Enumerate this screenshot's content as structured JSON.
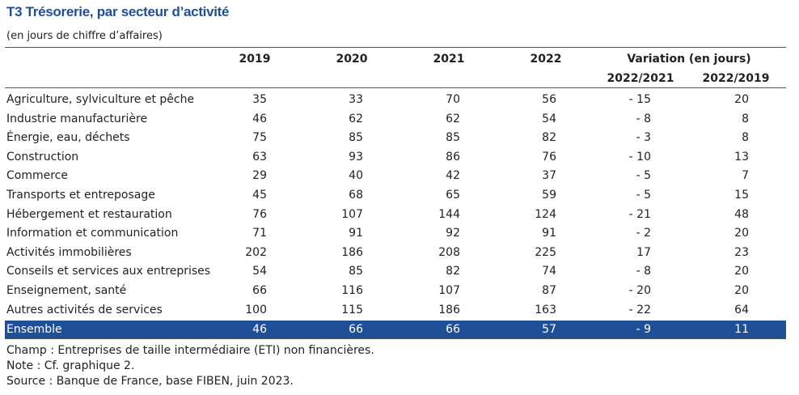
{
  "header": {
    "title": "T3  Trésorerie, par secteur d’activité",
    "subtitle": "(en jours de chiffre d’affaires)"
  },
  "table": {
    "columns": [
      "2019",
      "2020",
      "2021",
      "2022"
    ],
    "variation_header": "Variation (en jours)",
    "variation_columns": [
      "2022/2021",
      "2022/2019"
    ],
    "rows": [
      [
        "Agriculture, sylviculture et pêche",
        "35",
        "33",
        "70",
        "56",
        "- 15",
        "20"
      ],
      [
        "Industrie manufacturière",
        "46",
        "62",
        "62",
        "54",
        "- 8",
        "8"
      ],
      [
        "Énergie, eau, déchets",
        "75",
        "85",
        "85",
        "82",
        "- 3",
        "8"
      ],
      [
        "Construction",
        "63",
        "93",
        "86",
        "76",
        "- 10",
        "13"
      ],
      [
        "Commerce",
        "29",
        "40",
        "42",
        "37",
        "- 5",
        "7"
      ],
      [
        "Transports et entreposage",
        "45",
        "68",
        "65",
        "59",
        "- 5",
        "15"
      ],
      [
        "Hébergement et restauration",
        "76",
        "107",
        "144",
        "124",
        "- 21",
        "48"
      ],
      [
        "Information et communication",
        "71",
        "91",
        "92",
        "91",
        "- 2",
        "20"
      ],
      [
        "Activités immobilières",
        "202",
        "186",
        "208",
        "225",
        "17",
        "23"
      ],
      [
        "Conseils et services aux entreprises",
        "54",
        "85",
        "82",
        "74",
        "- 8",
        "20"
      ],
      [
        "Enseignement, santé",
        "66",
        "116",
        "107",
        "87",
        "- 20",
        "20"
      ],
      [
        "Autres activités de services",
        "100",
        "115",
        "186",
        "163",
        "- 22",
        "64"
      ]
    ],
    "total": [
      "Ensemble",
      "46",
      "66",
      "66",
      "57",
      "- 9",
      "11"
    ]
  },
  "notes": [
    "Champ : Entreprises de taille intermédiaire (ETI) non financières.",
    "Note : Cf. graphique 2.",
    "Source : Banque de France, base FIBEN, juin 2023."
  ]
}
